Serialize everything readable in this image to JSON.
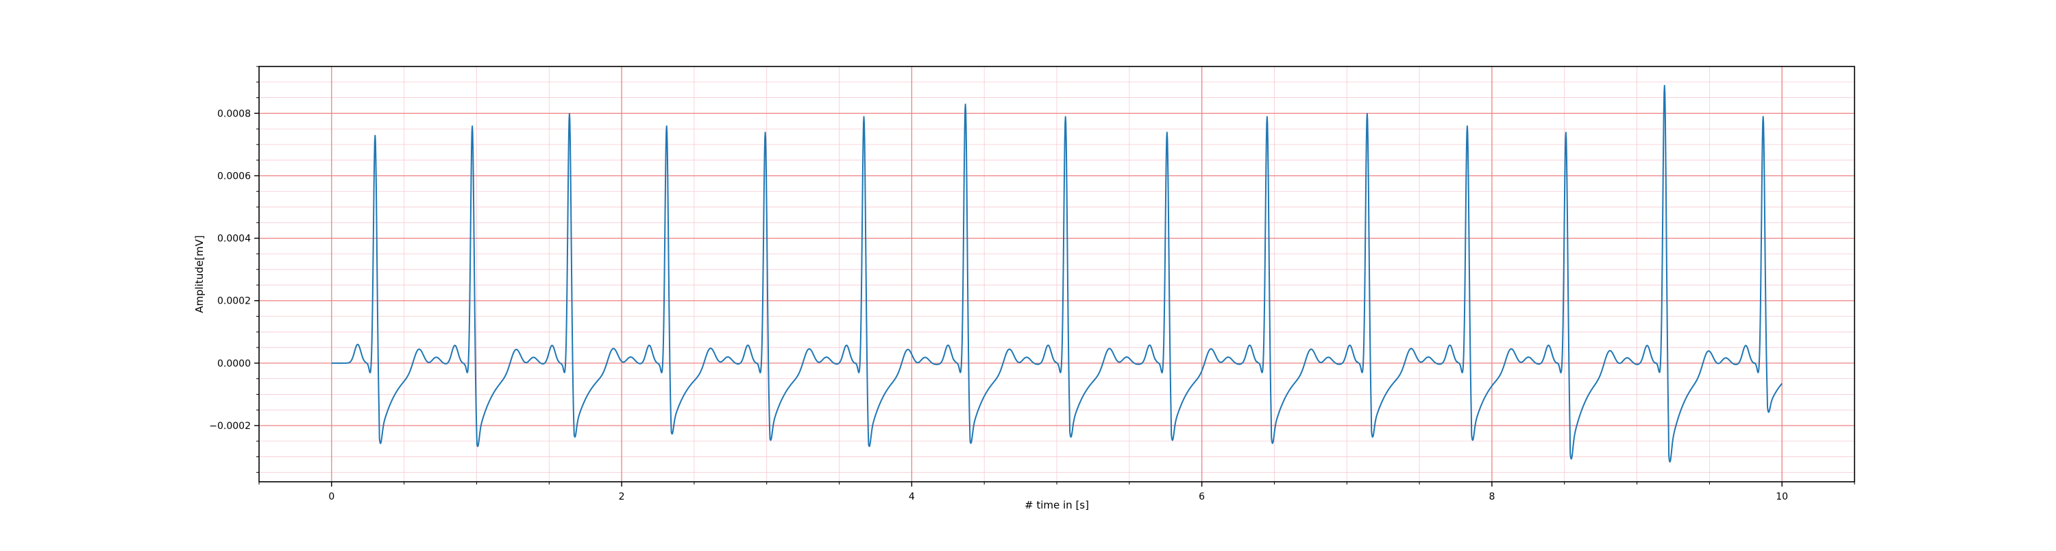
{
  "chart_data": {
    "type": "line",
    "title": "",
    "xlabel": "# time in [s]",
    "ylabel": "Amplitude[mV]",
    "xlim": [
      -0.5,
      10.5
    ],
    "ylim": [
      -0.00038,
      0.00095
    ],
    "x_ticks": [
      0,
      2,
      4,
      6,
      8,
      10
    ],
    "x_tick_labels": [
      "0",
      "2",
      "4",
      "6",
      "8",
      "10"
    ],
    "y_ticks": [
      -0.0002,
      0.0,
      0.0002,
      0.0004,
      0.0006,
      0.0008
    ],
    "y_tick_labels": [
      "−0.0002",
      "0.0000",
      "0.0002",
      "0.0004",
      "0.0006",
      "0.0008"
    ],
    "grid": {
      "major": true,
      "minor": true,
      "major_color": "#f08080",
      "minor_color": "#f7c9d2",
      "x_major_step": 2,
      "y_major_step": 0.0002,
      "x_minor_step": 0.5,
      "y_minor_step": 5e-05
    },
    "line_color": "#1f77b4",
    "series": [
      {
        "name": "",
        "beats": [
          {
            "r_time": 0.3,
            "r_peak": 0.00073,
            "s_min": -0.00026
          },
          {
            "r_time": 0.97,
            "r_peak": 0.00076,
            "s_min": -0.00027
          },
          {
            "r_time": 1.64,
            "r_peak": 0.0008,
            "s_min": -0.00024
          },
          {
            "r_time": 2.31,
            "r_peak": 0.00076,
            "s_min": -0.00023
          },
          {
            "r_time": 2.99,
            "r_peak": 0.00074,
            "s_min": -0.00025
          },
          {
            "r_time": 3.67,
            "r_peak": 0.00079,
            "s_min": -0.00027
          },
          {
            "r_time": 4.37,
            "r_peak": 0.00083,
            "s_min": -0.00026
          },
          {
            "r_time": 5.06,
            "r_peak": 0.00079,
            "s_min": -0.00024
          },
          {
            "r_time": 5.76,
            "r_peak": 0.00074,
            "s_min": -0.00025
          },
          {
            "r_time": 6.45,
            "r_peak": 0.00079,
            "s_min": -0.00026
          },
          {
            "r_time": 7.14,
            "r_peak": 0.0008,
            "s_min": -0.00024
          },
          {
            "r_time": 7.83,
            "r_peak": 0.00076,
            "s_min": -0.00025
          },
          {
            "r_time": 8.51,
            "r_peak": 0.00074,
            "s_min": -0.00031
          },
          {
            "r_time": 9.19,
            "r_peak": 0.00089,
            "s_min": -0.00032
          },
          {
            "r_time": 9.87,
            "r_peak": 0.00079,
            "s_min": -0.00016
          }
        ],
        "end": {
          "x": 10.0,
          "y": -3e-05
        },
        "baseline": 0.0,
        "wave_shape": {
          "t_wave": 7e-05,
          "p_wave": 6e-05,
          "q_dip": -4e-05
        }
      }
    ]
  }
}
